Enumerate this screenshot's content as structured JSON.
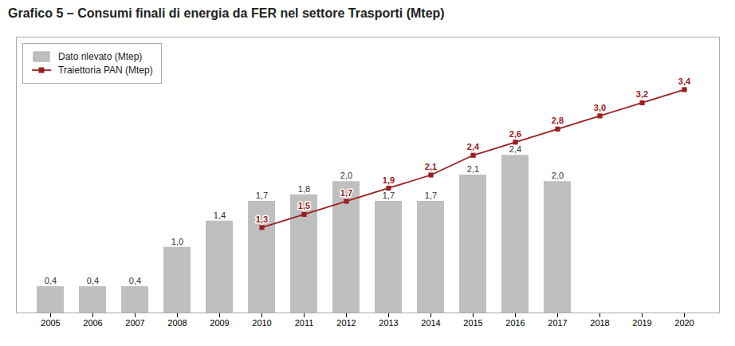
{
  "chart_data": {
    "type": "bar",
    "title": "Grafico 5 – Consumi finali di energia da FER nel settore Trasporti (Mtep)",
    "categories": [
      "2005",
      "2006",
      "2007",
      "2008",
      "2009",
      "2010",
      "2011",
      "2012",
      "2013",
      "2014",
      "2015",
      "2016",
      "2017",
      "2018",
      "2019",
      "2020"
    ],
    "series": [
      {
        "name": "Dato rilevato (Mtep)",
        "type": "bar",
        "color": "#c0bfbf",
        "values": [
          0.4,
          0.4,
          0.4,
          1.0,
          1.4,
          1.7,
          1.8,
          2.0,
          1.7,
          1.7,
          2.1,
          2.4,
          2.0,
          null,
          null,
          null
        ],
        "value_labels": [
          "0,4",
          "0,4",
          "0,4",
          "1,0",
          "1,4",
          "1,7",
          "1,8",
          "2,0",
          "1,7",
          "1,7",
          "2,1",
          "2,4",
          "2,0",
          null,
          null,
          null
        ]
      },
      {
        "name": "Traiettoria PAN (Mtep)",
        "type": "line",
        "color": "#9b2020",
        "marker": "square",
        "values": [
          null,
          null,
          null,
          null,
          null,
          1.3,
          1.5,
          1.7,
          1.9,
          2.1,
          2.4,
          2.6,
          2.8,
          3.0,
          3.2,
          3.4
        ],
        "value_labels": [
          null,
          null,
          null,
          null,
          null,
          "1,3",
          "1,5",
          "1,7",
          "1,9",
          "2,1",
          "2,4",
          "2,6",
          "2,8",
          "3,0",
          "3,2",
          "3,4"
        ]
      }
    ],
    "ylim": [
      0,
      4.2
    ],
    "tick_labels": "x",
    "data_labels": true,
    "legend": "upper left",
    "grid": false
  }
}
